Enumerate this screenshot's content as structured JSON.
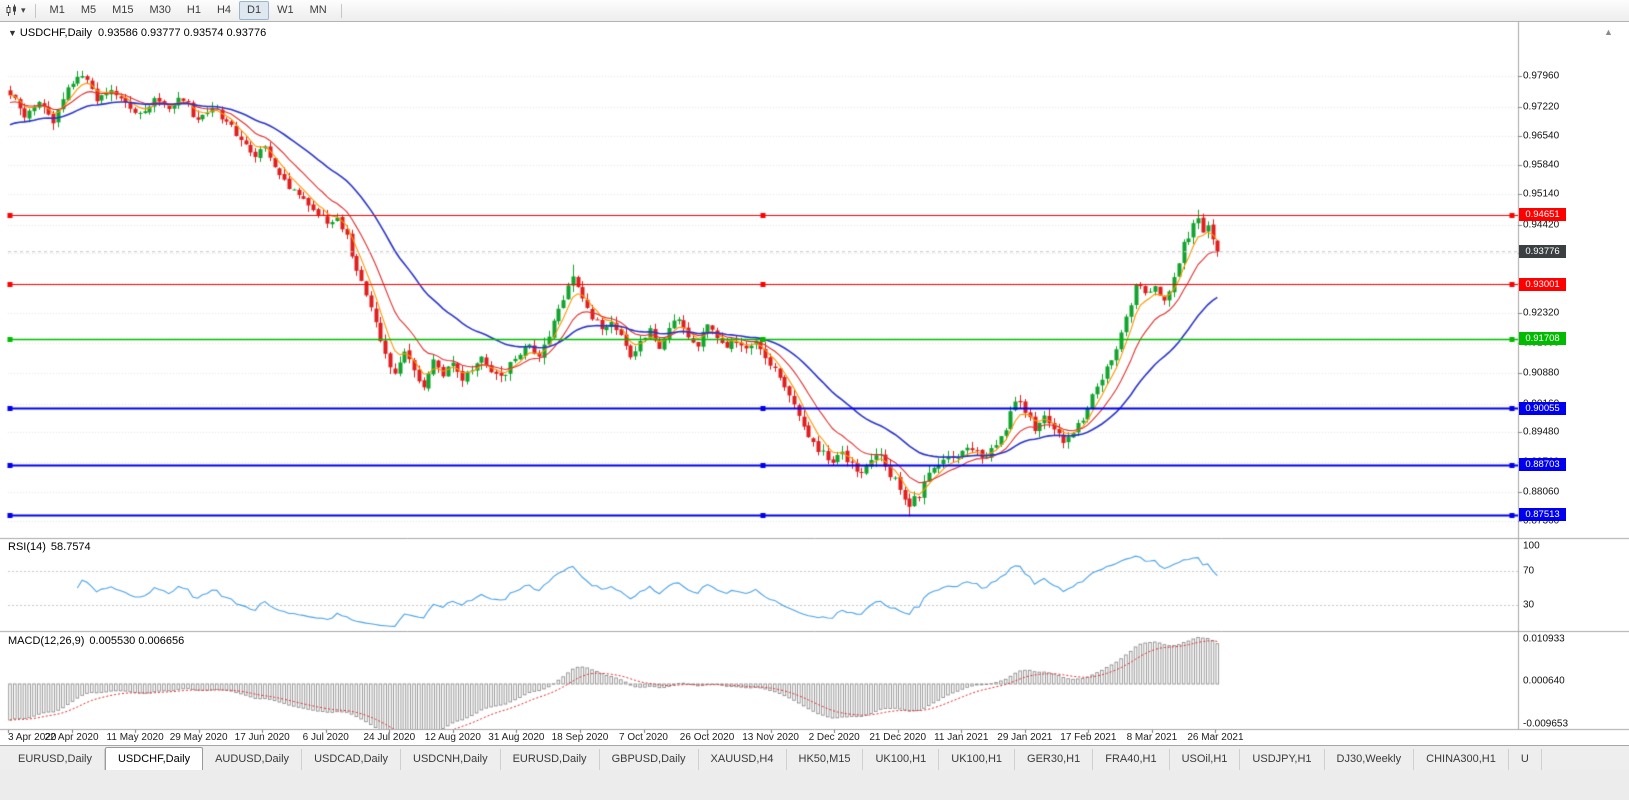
{
  "toolbar": {
    "timeframes": [
      "M1",
      "M5",
      "M15",
      "M30",
      "H1",
      "H4",
      "D1",
      "W1",
      "MN"
    ],
    "active_timeframe": "D1"
  },
  "chart": {
    "symbol_title": "USDCHF,Daily",
    "ohlc": "0.93586 0.93777 0.93574 0.93776",
    "current_price": {
      "label": "0.93776",
      "value": 0.93776,
      "badge_color": "#3c3f41"
    },
    "axis_labels": [
      {
        "text": "0.97960",
        "value": 0.9796
      },
      {
        "text": "0.97220",
        "value": 0.9722
      },
      {
        "text": "0.96540",
        "value": 0.9654
      },
      {
        "text": "0.95840",
        "value": 0.9584
      },
      {
        "text": "0.95140",
        "value": 0.9514
      },
      {
        "text": "0.94420",
        "value": 0.9442
      },
      {
        "text": "0.93740",
        "value": 0.9374
      },
      {
        "text": "0.93020",
        "value": 0.9302
      },
      {
        "text": "0.92320",
        "value": 0.9232
      },
      {
        "text": "0.91600",
        "value": 0.916
      },
      {
        "text": "0.90880",
        "value": 0.9088
      },
      {
        "text": "0.90160",
        "value": 0.9016
      },
      {
        "text": "0.89480",
        "value": 0.8948
      },
      {
        "text": "0.88760",
        "value": 0.8876
      },
      {
        "text": "0.88060",
        "value": 0.8806
      },
      {
        "text": "0.87360",
        "value": 0.8736
      }
    ],
    "hlines": [
      {
        "label": "0.94651",
        "value": 0.94651,
        "color": "#ff0000",
        "width": 1.2
      },
      {
        "label": "0.93001",
        "value": 0.93001,
        "color": "#ff0000",
        "width": 1.2
      },
      {
        "label": "0.91708",
        "value": 0.91708,
        "color": "#00bb00",
        "width": 1.5
      },
      {
        "label": "0.90055",
        "value": 0.90055,
        "color": "#0000ee",
        "width": 2
      },
      {
        "label": "0.88703",
        "value": 0.88703,
        "color": "#0000ee",
        "width": 2
      },
      {
        "label": "0.87513",
        "value": 0.87513,
        "color": "#0000ee",
        "width": 2
      }
    ],
    "dates": [
      "3 Apr 2020",
      "22 Apr 2020",
      "11 May 2020",
      "29 May 2020",
      "17 Jun 2020",
      "6 Jul 2020",
      "24 Jul 2020",
      "12 Aug 2020",
      "31 Aug 2020",
      "18 Sep 2020",
      "7 Oct 2020",
      "26 Oct 2020",
      "13 Nov 2020",
      "2 Dec 2020",
      "21 Dec 2020",
      "11 Jan 2021",
      "29 Jan 2021",
      "17 Feb 2021",
      "8 Mar 2021",
      "26 Mar 2021"
    ],
    "colors": {
      "up": "#12a42e",
      "down": "#e01f1f",
      "ma_fast": "#ff9500",
      "ma_mid": "#e03232",
      "ma_slow": "#2b35c8",
      "macd_hist": "#8f8f8f",
      "macd_signal": "#e03232"
    },
    "chart_data": {
      "type": "candlestick",
      "symbol": "USDCHF",
      "timeframe": "Daily",
      "close_anchors": [
        [
          0,
          0.9755
        ],
        [
          3,
          0.97
        ],
        [
          6,
          0.9738
        ],
        [
          9,
          0.969
        ],
        [
          12,
          0.9772
        ],
        [
          15,
          0.98
        ],
        [
          18,
          0.9735
        ],
        [
          21,
          0.9762
        ],
        [
          24,
          0.973
        ],
        [
          27,
          0.97
        ],
        [
          30,
          0.9748
        ],
        [
          33,
          0.9718
        ],
        [
          36,
          0.9745
        ],
        [
          39,
          0.9688
        ],
        [
          42,
          0.972
        ],
        [
          45,
          0.9692
        ],
        [
          48,
          0.964
        ],
        [
          51,
          0.9605
        ],
        [
          53,
          0.9635
        ],
        [
          55,
          0.957
        ],
        [
          58,
          0.9535
        ],
        [
          61,
          0.9505
        ],
        [
          64,
          0.947
        ],
        [
          66,
          0.9445
        ],
        [
          68,
          0.9465
        ],
        [
          70,
          0.941
        ],
        [
          72,
          0.934
        ],
        [
          74,
          0.927
        ],
        [
          76,
          0.9205
        ],
        [
          78,
          0.9135
        ],
        [
          80,
          0.9085
        ],
        [
          82,
          0.914
        ],
        [
          84,
          0.9095
        ],
        [
          86,
          0.9058
        ],
        [
          88,
          0.9125
        ],
        [
          90,
          0.9085
        ],
        [
          92,
          0.9112
        ],
        [
          94,
          0.9068
        ],
        [
          96,
          0.91
        ],
        [
          98,
          0.9135
        ],
        [
          100,
          0.9092
        ],
        [
          102,
          0.9078
        ],
        [
          104,
          0.9108
        ],
        [
          106,
          0.9132
        ],
        [
          108,
          0.9158
        ],
        [
          110,
          0.9128
        ],
        [
          112,
          0.9175
        ],
        [
          114,
          0.9235
        ],
        [
          116,
          0.9305
        ],
        [
          117,
          0.9315
        ],
        [
          119,
          0.927
        ],
        [
          121,
          0.9225
        ],
        [
          123,
          0.919
        ],
        [
          125,
          0.9212
        ],
        [
          127,
          0.9172
        ],
        [
          129,
          0.9135
        ],
        [
          131,
          0.9162
        ],
        [
          133,
          0.9188
        ],
        [
          135,
          0.9155
        ],
        [
          137,
          0.92
        ],
        [
          139,
          0.9215
        ],
        [
          141,
          0.918
        ],
        [
          143,
          0.915
        ],
        [
          145,
          0.9208
        ],
        [
          147,
          0.918
        ],
        [
          149,
          0.9152
        ],
        [
          151,
          0.9165
        ],
        [
          153,
          0.9145
        ],
        [
          155,
          0.9158
        ],
        [
          157,
          0.9128
        ],
        [
          159,
          0.9098
        ],
        [
          161,
          0.9048
        ],
        [
          163,
          0.9008
        ],
        [
          165,
          0.8958
        ],
        [
          167,
          0.8918
        ],
        [
          169,
          0.8898
        ],
        [
          171,
          0.8878
        ],
        [
          173,
          0.8902
        ],
        [
          175,
          0.8868
        ],
        [
          177,
          0.8848
        ],
        [
          179,
          0.8878
        ],
        [
          181,
          0.8898
        ],
        [
          183,
          0.8848
        ],
        [
          185,
          0.8815
        ],
        [
          187,
          0.8775
        ],
        [
          189,
          0.88
        ],
        [
          191,
          0.8845
        ],
        [
          193,
          0.8878
        ],
        [
          195,
          0.8898
        ],
        [
          197,
          0.8888
        ],
        [
          199,
          0.8918
        ],
        [
          201,
          0.8898
        ],
        [
          203,
          0.8888
        ],
        [
          205,
          0.8918
        ],
        [
          207,
          0.8958
        ],
        [
          209,
          0.9028
        ],
        [
          211,
          0.8995
        ],
        [
          213,
          0.8958
        ],
        [
          215,
          0.8988
        ],
        [
          217,
          0.8958
        ],
        [
          219,
          0.8928
        ],
        [
          221,
          0.8948
        ],
        [
          223,
          0.8978
        ],
        [
          225,
          0.9038
        ],
        [
          227,
          0.9078
        ],
        [
          229,
          0.9128
        ],
        [
          231,
          0.9178
        ],
        [
          233,
          0.9258
        ],
        [
          234,
          0.9305
        ],
        [
          236,
          0.9285
        ],
        [
          238,
          0.9298
        ],
        [
          240,
          0.9262
        ],
        [
          242,
          0.9318
        ],
        [
          244,
          0.9398
        ],
        [
          246,
          0.9438
        ],
        [
          247,
          0.9455
        ],
        [
          248,
          0.9428
        ],
        [
          249,
          0.9442
        ],
        [
          250,
          0.9415
        ],
        [
          251,
          0.93776
        ]
      ]
    }
  },
  "rsi": {
    "label": "RSI(14)",
    "value": "58.7574",
    "period": 14,
    "color": "#4da3e8",
    "levels": [
      {
        "text": "100",
        "value": 100
      },
      {
        "text": "70",
        "value": 70
      },
      {
        "text": "30",
        "value": 30
      }
    ]
  },
  "macd": {
    "label": "MACD(12,26,9)",
    "values": "0.005530 0.006656",
    "fast": 12,
    "slow": 26,
    "signal": 9,
    "scale_labels": [
      {
        "text": "0.010933",
        "value": 0.010933
      },
      {
        "text": "0.000640",
        "value": 0.00064
      },
      {
        "text": "-0.009653",
        "value": -0.009653
      }
    ]
  },
  "tabs": {
    "active_index": 1,
    "items": [
      "EURUSD,Daily",
      "USDCHF,Daily",
      "AUDUSD,Daily",
      "USDCAD,Daily",
      "USDCNH,Daily",
      "EURUSD,Daily",
      "GBPUSD,Daily",
      "XAUUSD,H4",
      "HK50,M15",
      "UK100,H1",
      "UK100,H1",
      "GER30,H1",
      "FRA40,H1",
      "USOil,H1",
      "USDJPY,H1",
      "DJ30,Weekly",
      "CHINA300,H1",
      "U"
    ]
  }
}
